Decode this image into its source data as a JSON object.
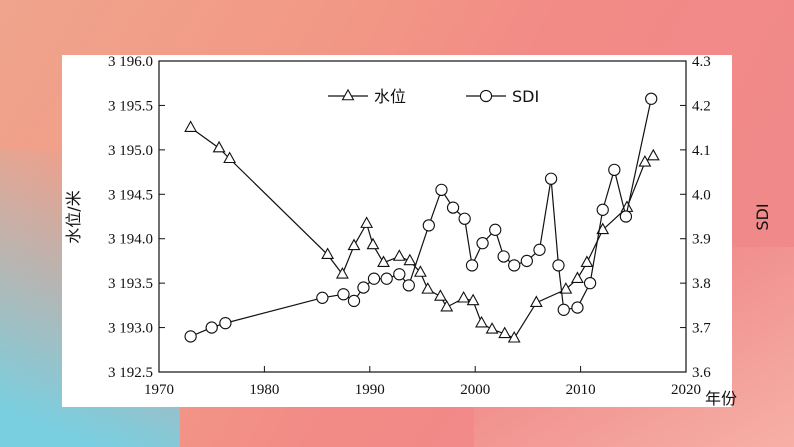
{
  "chart_data": {
    "type": "line",
    "xlabel": "年份",
    "ylabel_left": "水位/米",
    "ylabel_right": "SDI",
    "xlim": [
      1970,
      2020
    ],
    "ylim_left": [
      3192.5,
      3196.0
    ],
    "ylim_right": [
      3.6,
      4.3
    ],
    "x_ticks": [
      "1970",
      "1980",
      "1990",
      "2000",
      "2010",
      "2020"
    ],
    "y_left_ticks": [
      "3 192.5",
      "3 193.0",
      "3 193.5",
      "3 194.0",
      "3 194.5",
      "3 195.0",
      "3 195.5",
      "3 196.0"
    ],
    "y_right_ticks": [
      "3.6",
      "3.7",
      "3.8",
      "3.9",
      "4.0",
      "4.1",
      "4.2",
      "4.3"
    ],
    "legend_position": "top-center",
    "series": [
      {
        "name": "水位",
        "axis": "left",
        "marker": "triangle",
        "x": [
          1973,
          1975.7,
          1976.7,
          1986,
          1987.4,
          1988.5,
          1989.7,
          1990.3,
          1991.3,
          1992.8,
          1993.8,
          1994.8,
          1995.5,
          1996.7,
          1997.3,
          1998.9,
          1999.8,
          2000.6,
          2001.6,
          2002.8,
          2003.7,
          2005.8,
          2008.6,
          2009.7,
          2010.6,
          2012.1,
          2014.4,
          2016.1,
          2016.9
        ],
        "y": [
          3195.25,
          3195.02,
          3194.9,
          3193.82,
          3193.6,
          3193.92,
          3194.17,
          3193.93,
          3193.73,
          3193.8,
          3193.75,
          3193.62,
          3193.43,
          3193.35,
          3193.23,
          3193.33,
          3193.3,
          3193.05,
          3192.98,
          3192.93,
          3192.88,
          3193.28,
          3193.43,
          3193.55,
          3193.73,
          3194.1,
          3194.35,
          3194.86,
          3194.93
        ]
      },
      {
        "name": "SDI",
        "axis": "right",
        "marker": "circle",
        "x": [
          1973,
          1975,
          1976.3,
          1985.5,
          1987.5,
          1988.5,
          1989.4,
          1990.4,
          1991.6,
          1992.8,
          1993.7,
          1995.6,
          1996.8,
          1997.9,
          1999,
          1999.7,
          2000.7,
          2001.9,
          2002.7,
          2003.7,
          2004.9,
          2006.1,
          2007.2,
          2007.9,
          2008.4,
          2009.7,
          2010.9,
          2012.1,
          2013.2,
          2014.3,
          2016.7
        ],
        "y": [
          3.68,
          3.7,
          3.71,
          3.767,
          3.775,
          3.76,
          3.79,
          3.81,
          3.81,
          3.82,
          3.795,
          3.93,
          4.01,
          3.97,
          3.945,
          3.84,
          3.89,
          3.92,
          3.86,
          3.84,
          3.85,
          3.875,
          4.035,
          3.84,
          3.74,
          3.745,
          3.8,
          3.965,
          4.055,
          3.95,
          4.215
        ]
      }
    ]
  }
}
